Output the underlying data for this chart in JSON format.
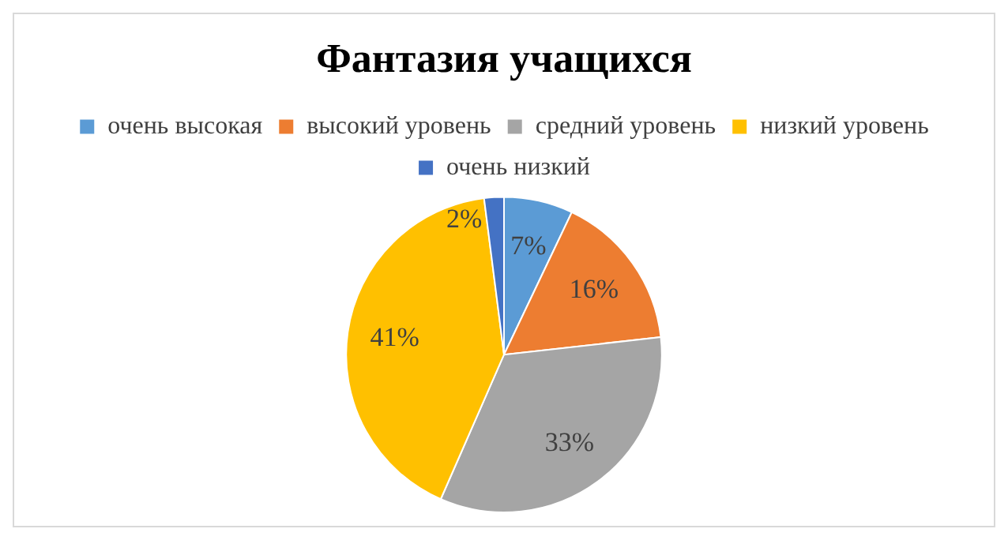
{
  "chart_data": {
    "type": "pie",
    "title": "Фантазия учащихся",
    "categories": [
      "очень высокая",
      "высокий уровень",
      "средний уровень",
      "низкий уровень",
      "очень низкий"
    ],
    "values": [
      7,
      16,
      33,
      41,
      2
    ],
    "colors": [
      "#5b9bd5",
      "#ed7d31",
      "#a5a5a5",
      "#ffc000",
      "#4472c4"
    ],
    "value_labels": [
      "7%",
      "16%",
      "33%",
      "41%",
      "2%"
    ],
    "legend": "top"
  }
}
